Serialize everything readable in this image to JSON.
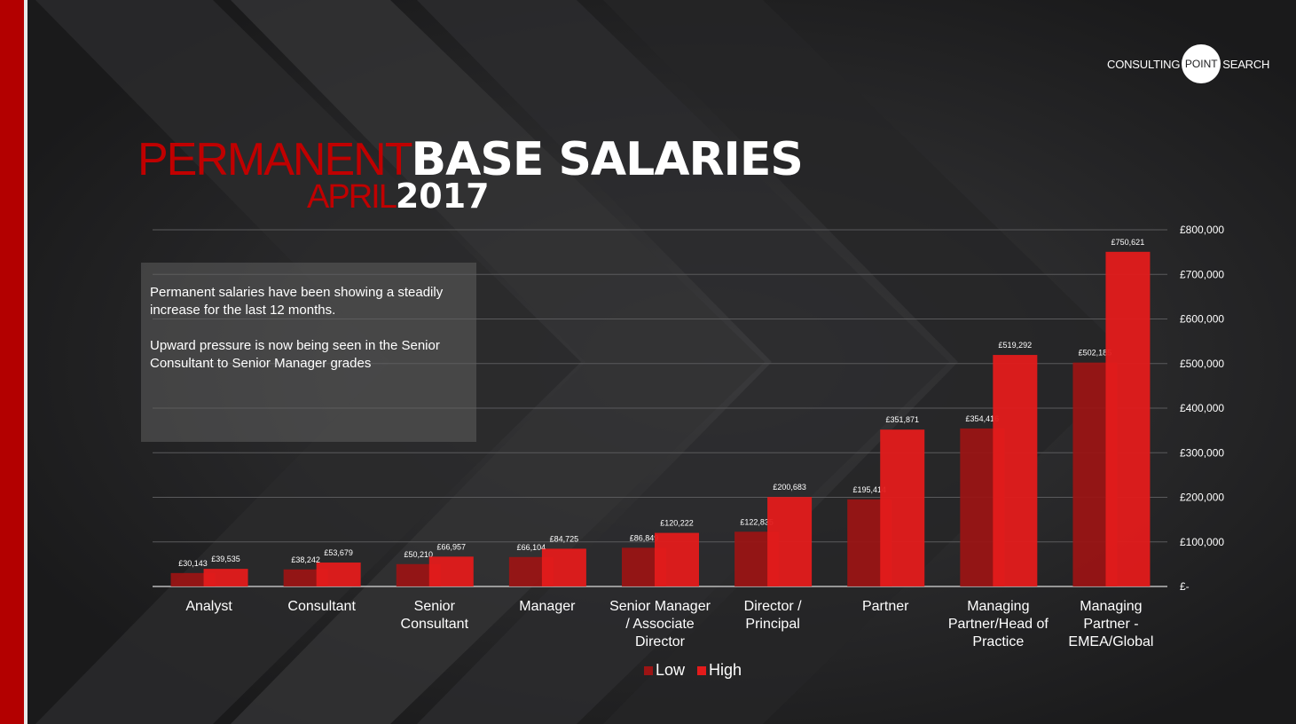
{
  "logo": {
    "left": "CONSULTING",
    "center": "POINT",
    "right": "SEARCH"
  },
  "title": {
    "line1_thin": "PERMANENT",
    "line1_bold": "BASE SALARIES",
    "line2_thin": "APRIL",
    "line2_bold": "2017"
  },
  "textbox": {
    "paragraph1": "Permanent salaries have been showing a steadily increase for the last 12 months.",
    "paragraph2": "Upward pressure is now being seen in the Senior Consultant to Senior Manager grades"
  },
  "colors": {
    "low": "#9c1414",
    "high": "#e31b1b",
    "accent": "#c00000"
  },
  "chart_data": {
    "type": "bar",
    "categories": [
      [
        "Analyst"
      ],
      [
        "Consultant"
      ],
      [
        "Senior",
        "Consultant"
      ],
      [
        "Manager"
      ],
      [
        "Senior Manager",
        "/ Associate",
        "Director"
      ],
      [
        "Director /",
        "Principal"
      ],
      [
        "Partner"
      ],
      [
        "Managing",
        "Partner/Head of",
        "Practice"
      ],
      [
        "Managing",
        "Partner -",
        "EMEA/Global"
      ]
    ],
    "series": [
      {
        "name": "Low",
        "values": [
          30143,
          38242,
          50210,
          66104,
          86849,
          122835,
          195414,
          354416,
          502185
        ],
        "labels": [
          "£30,143",
          "£38,242",
          "£50,210",
          "£66,104",
          "£86,849",
          "£122,835",
          "£195,414",
          "£354,416",
          "£502,185"
        ]
      },
      {
        "name": "High",
        "values": [
          39535,
          53679,
          66957,
          84725,
          120222,
          200683,
          351871,
          519292,
          750621
        ],
        "labels": [
          "£39,535",
          "£53,679",
          "£66,957",
          "£84,725",
          "£120,222",
          "£200,683",
          "£351,871",
          "£519,292",
          "£750,621"
        ]
      }
    ],
    "ylim": [
      0,
      800000
    ],
    "yticks": [
      "£-",
      "£100,000",
      "£200,000",
      "£300,000",
      "£400,000",
      "£500,000",
      "£600,000",
      "£700,000",
      "£800,000"
    ],
    "grid": true,
    "y_axis_position": "right",
    "legend": "bottom"
  }
}
